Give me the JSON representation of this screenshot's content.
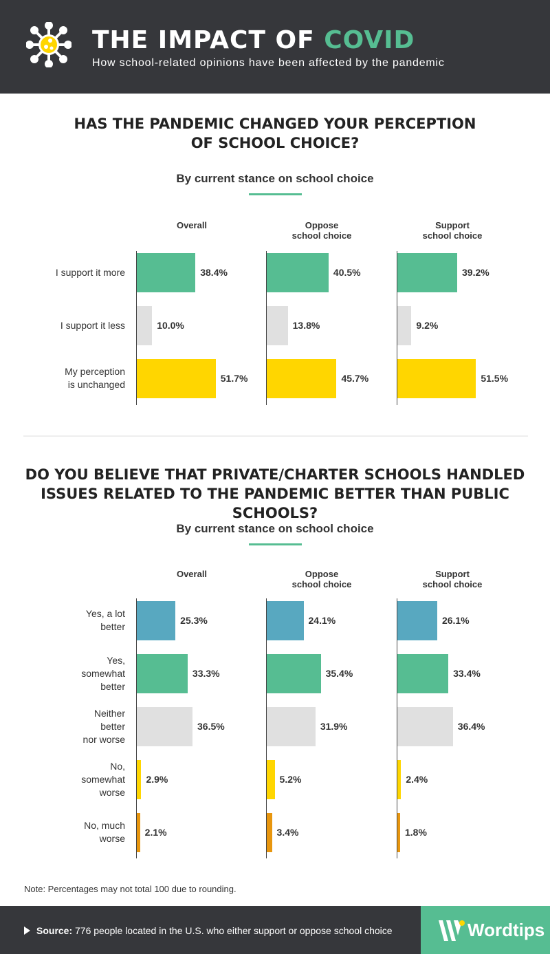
{
  "header": {
    "title_main": "THE IMPACT OF ",
    "title_highlight": "COVID",
    "subtitle": "How school-related opinions have been affected by the pandemic"
  },
  "colors": {
    "green": "#56bd92",
    "grey": "#e0e0e0",
    "yellow": "#ffd600",
    "blue": "#58a8c0",
    "orange": "#e8960e",
    "dark": "#36373b"
  },
  "chart_data": [
    {
      "type": "bar",
      "orientation": "horizontal",
      "title": "HAS THE PANDEMIC CHANGED YOUR PERCEPTION OF SCHOOL CHOICE?",
      "subtitle": "By current stance on school choice",
      "panels": [
        "Overall",
        "Oppose\nschool choice",
        "Support\nschool choice"
      ],
      "categories": [
        "I support it more",
        "I support it less",
        "My perception\nis unchanged"
      ],
      "category_colors": [
        "#56bd92",
        "#e0e0e0",
        "#ffd600"
      ],
      "series": [
        {
          "name": "Overall",
          "values": [
            38.4,
            10.0,
            51.7
          ]
        },
        {
          "name": "Oppose school choice",
          "values": [
            40.5,
            13.8,
            45.7
          ]
        },
        {
          "name": "Support school choice",
          "values": [
            39.2,
            9.2,
            51.5
          ]
        }
      ],
      "labels": [
        [
          "38.4%",
          "10.0%",
          "51.7%"
        ],
        [
          "40.5%",
          "13.8%",
          "45.7%"
        ],
        [
          "39.2%",
          "9.2%",
          "51.5%"
        ]
      ],
      "unit": "%"
    },
    {
      "type": "bar",
      "orientation": "horizontal",
      "title": "DO YOU BELIEVE THAT PRIVATE/CHARTER SCHOOLS HANDLED ISSUES RELATED  TO THE PANDEMIC BETTER THAN PUBLIC SCHOOLS?",
      "subtitle": "By current stance on school choice",
      "panels": [
        "Overall",
        "Oppose\nschool choice",
        "Support\nschool choice"
      ],
      "categories": [
        "Yes, a lot\nbetter",
        "Yes,\nsomewhat\nbetter",
        "Neither\nbetter\nnor worse",
        "No,\nsomewhat\nworse",
        "No, much\nworse"
      ],
      "category_colors": [
        "#58a8c0",
        "#56bd92",
        "#e0e0e0",
        "#ffd600",
        "#e8960e"
      ],
      "series": [
        {
          "name": "Overall",
          "values": [
            25.3,
            33.3,
            36.5,
            2.9,
            2.1
          ]
        },
        {
          "name": "Oppose school choice",
          "values": [
            24.1,
            35.4,
            31.9,
            5.2,
            3.4
          ]
        },
        {
          "name": "Support school choice",
          "values": [
            26.1,
            33.4,
            36.4,
            2.4,
            1.8
          ]
        }
      ],
      "labels": [
        [
          "25.3%",
          "33.3%",
          "36.5%",
          "2.9%",
          "2.1%"
        ],
        [
          "24.1%",
          "35.4%",
          "31.9%",
          "5.2%",
          "3.4%"
        ],
        [
          "26.1%",
          "33.4%",
          "36.4%",
          "2.4%",
          "1.8%"
        ]
      ],
      "unit": "%"
    }
  ],
  "note": "Note: Percentages may not total 100 due to rounding.",
  "footer": {
    "source_label": "Source:",
    "source_text": " 776 people located in the U.S. who either support or oppose school choice",
    "logo": "Wordtips"
  }
}
